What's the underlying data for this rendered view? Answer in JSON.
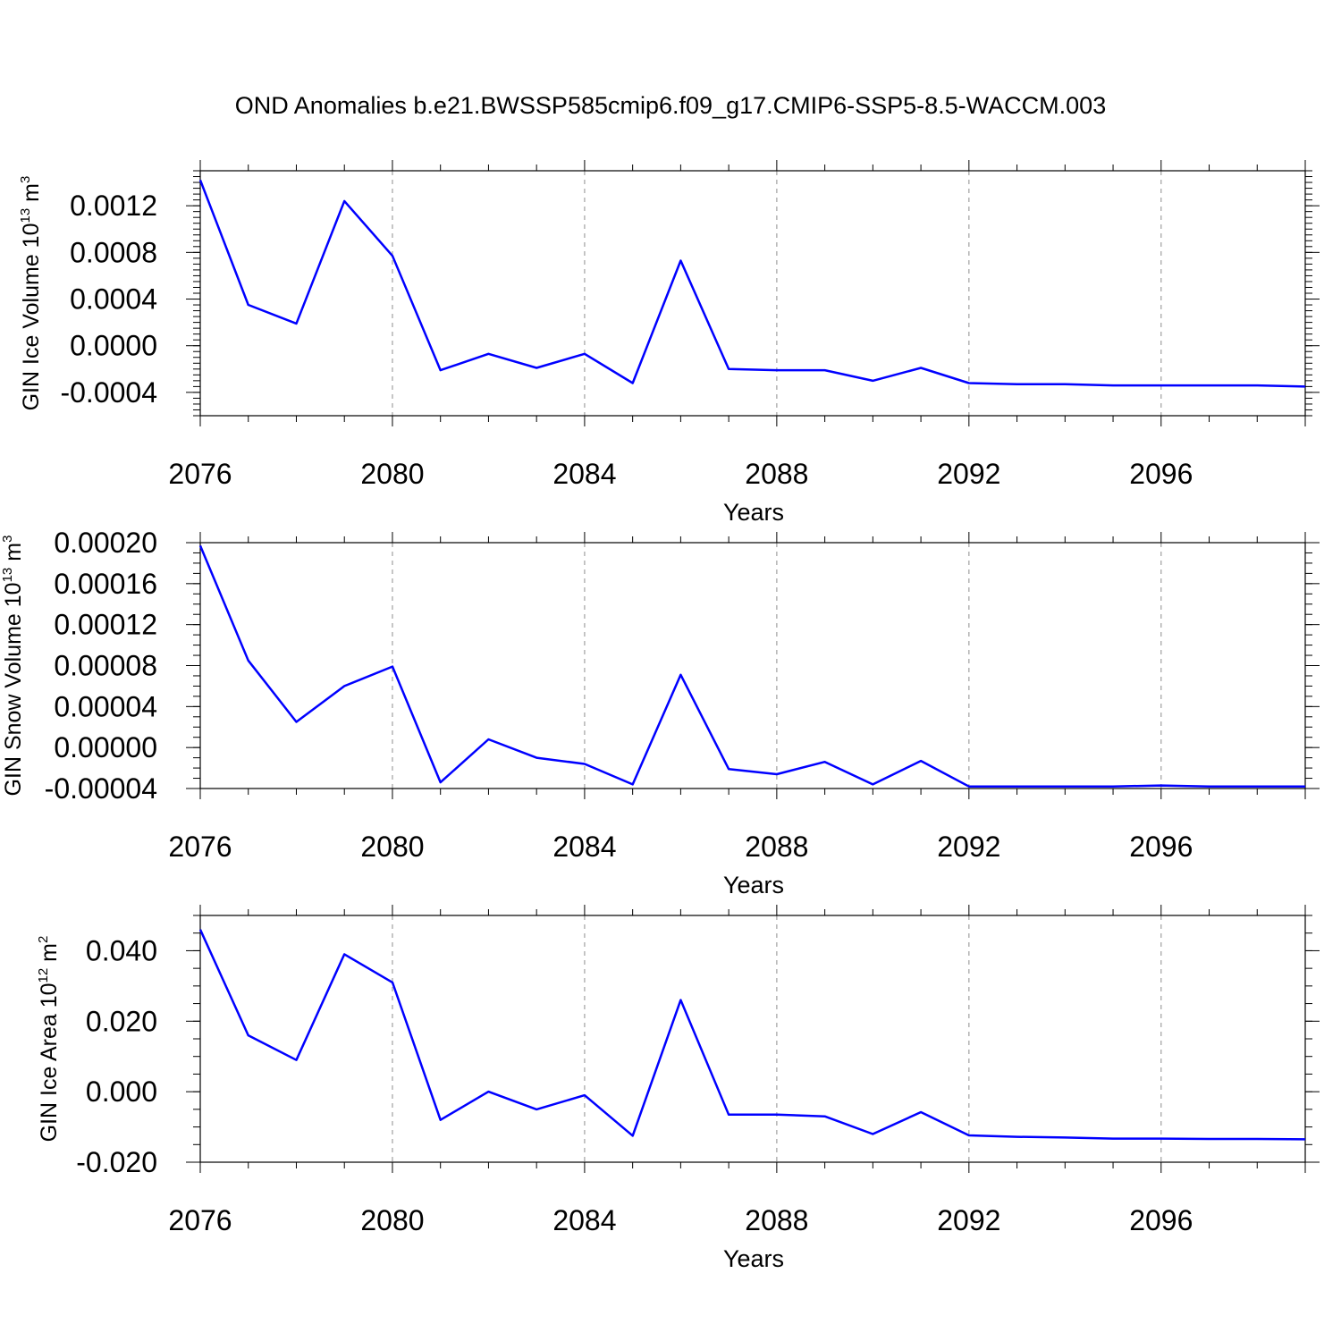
{
  "page": {
    "title": "OND Anomalies b.e21.BWSSP585cmip6.f09_g17.CMIP6-SSP5-8.5-WACCM.003"
  },
  "colors": {
    "series": "#0000ff",
    "axes": "#000000",
    "grid": "#a0a0a0"
  },
  "chart_data": [
    {
      "type": "line",
      "ylabel": "GIN Ice Volume 10",
      "ylabel_exponent": "13",
      "ylabel_unit": "m",
      "ylabel_unit_exponent": "3",
      "xlabel": "Years",
      "xlim": [
        2076,
        2099
      ],
      "ylim": [
        -0.0006,
        0.0015
      ],
      "xticks": [
        "2076",
        "2080",
        "2084",
        "2088",
        "2092",
        "2096"
      ],
      "yticks": [
        "-0.0004",
        "0.0000",
        "0.0004",
        "0.0008",
        "0.0012"
      ],
      "grid": "vertical dashed at major x ticks",
      "series": [
        {
          "x": [
            2076,
            2077,
            2078,
            2079,
            2080,
            2081,
            2082,
            2083,
            2084,
            2085,
            2086,
            2087,
            2088,
            2089,
            2090,
            2091,
            2092,
            2093,
            2094,
            2095,
            2096,
            2097,
            2098,
            2099
          ],
          "values": [
            0.00142,
            0.00035,
            0.00019,
            0.00124,
            0.00077,
            -0.00021,
            -7e-05,
            -0.00019,
            -7e-05,
            -0.00032,
            0.00073,
            -0.0002,
            -0.00021,
            -0.00021,
            -0.0003,
            -0.00019,
            -0.00032,
            -0.00033,
            -0.00033,
            -0.00034,
            -0.00034,
            -0.00034,
            -0.00034,
            -0.00035
          ]
        }
      ]
    },
    {
      "type": "line",
      "ylabel": "GIN Snow Volume 10",
      "ylabel_exponent": "13",
      "ylabel_unit": "m",
      "ylabel_unit_exponent": "3",
      "xlabel": "Years",
      "xlim": [
        2076,
        2099
      ],
      "ylim": [
        -4e-05,
        0.0002
      ],
      "xticks": [
        "2076",
        "2080",
        "2084",
        "2088",
        "2092",
        "2096"
      ],
      "yticks": [
        "-0.00004",
        "0.00000",
        "0.00004",
        "0.00008",
        "0.00012",
        "0.00016",
        "0.00020"
      ],
      "grid": "vertical dashed at major x ticks",
      "series": [
        {
          "x": [
            2076,
            2077,
            2078,
            2079,
            2080,
            2081,
            2082,
            2083,
            2084,
            2085,
            2086,
            2087,
            2088,
            2089,
            2090,
            2091,
            2092,
            2093,
            2094,
            2095,
            2096,
            2097,
            2098,
            2099
          ],
          "values": [
            0.000197,
            8.5e-05,
            2.5e-05,
            6e-05,
            7.9e-05,
            -3.4e-05,
            8e-06,
            -1e-05,
            -1.6e-05,
            -3.6e-05,
            7.1e-05,
            -2.1e-05,
            -2.6e-05,
            -1.4e-05,
            -3.6e-05,
            -1.3e-05,
            -3.8e-05,
            -3.8e-05,
            -3.8e-05,
            -3.8e-05,
            -3.7e-05,
            -3.8e-05,
            -3.8e-05,
            -3.8e-05
          ]
        }
      ]
    },
    {
      "type": "line",
      "ylabel": "GIN Ice Area 10",
      "ylabel_exponent": "12",
      "ylabel_unit": "m",
      "ylabel_unit_exponent": "2",
      "xlabel": "Years",
      "xlim": [
        2076,
        2099
      ],
      "ylim": [
        -0.02,
        0.05
      ],
      "xticks": [
        "2076",
        "2080",
        "2084",
        "2088",
        "2092",
        "2096"
      ],
      "yticks": [
        "-0.020",
        "0.000",
        "0.020",
        "0.040"
      ],
      "grid": "vertical dashed at major x ticks",
      "series": [
        {
          "x": [
            2076,
            2077,
            2078,
            2079,
            2080,
            2081,
            2082,
            2083,
            2084,
            2085,
            2086,
            2087,
            2088,
            2089,
            2090,
            2091,
            2092,
            2093,
            2094,
            2095,
            2096,
            2097,
            2098,
            2099
          ],
          "values": [
            0.046,
            0.016,
            0.009,
            0.039,
            0.031,
            -0.008,
            0.0,
            -0.005,
            -0.001,
            -0.0125,
            0.026,
            -0.0065,
            -0.0065,
            -0.007,
            -0.012,
            -0.0058,
            -0.0124,
            -0.0128,
            -0.013,
            -0.0133,
            -0.0133,
            -0.0134,
            -0.0134,
            -0.0135
          ]
        }
      ]
    }
  ]
}
